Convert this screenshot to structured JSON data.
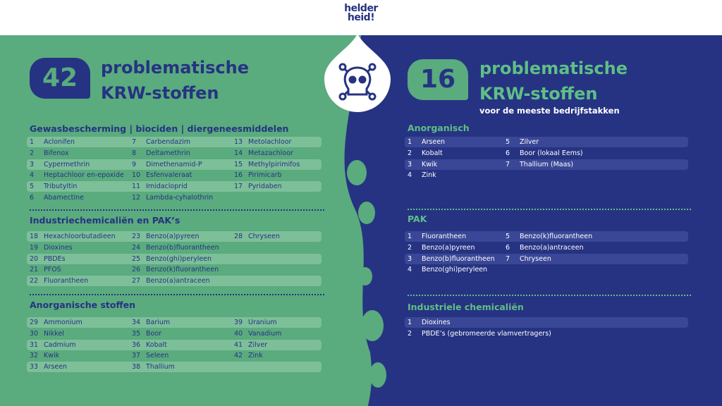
{
  "header": {
    "logo_lines": [
      "helder",
      "heid!"
    ]
  },
  "left": {
    "count": 42,
    "title_lines": [
      "problematische",
      "KRW-stoffen"
    ],
    "sections": [
      {
        "heading": "Gewasbescherming | biociden | diergeneesmiddelen",
        "columns": [
          [
            {
              "num": 1,
              "name": "Aclonifen"
            },
            {
              "num": 2,
              "name": "Bifenox"
            },
            {
              "num": 3,
              "name": "Cypermethrin"
            },
            {
              "num": 4,
              "name": "Heptachloor en-epoxide"
            },
            {
              "num": 5,
              "name": "Tributyltin"
            },
            {
              "num": 6,
              "name": "Abamectine"
            }
          ],
          [
            {
              "num": 7,
              "name": "Carbendazim"
            },
            {
              "num": 8,
              "name": "Deltamethrin"
            },
            {
              "num": 9,
              "name": "Dimethenamid-P"
            },
            {
              "num": 10,
              "name": "Esfenvaleraat"
            },
            {
              "num": 11,
              "name": "Imidacloprid"
            },
            {
              "num": 12,
              "name": "Lambda-cyhalothrin"
            }
          ],
          [
            {
              "num": 13,
              "name": "Metolachloor"
            },
            {
              "num": 14,
              "name": "Metazachloor"
            },
            {
              "num": 15,
              "name": "Methylpirimifos"
            },
            {
              "num": 16,
              "name": "Pirimicarb"
            },
            {
              "num": 17,
              "name": "Pyridaben"
            }
          ]
        ]
      },
      {
        "heading": "Industriechemicaliën en PAK’s",
        "columns": [
          [
            {
              "num": 18,
              "name": "Hexachloorbutadieen"
            },
            {
              "num": 19,
              "name": "Dioxines"
            },
            {
              "num": 20,
              "name": "PBDEs"
            },
            {
              "num": 21,
              "name": "PFOS"
            },
            {
              "num": 22,
              "name": "Fluorantheen"
            }
          ],
          [
            {
              "num": 23,
              "name": "Benzo(a)pyreen"
            },
            {
              "num": 24,
              "name": "Benzo(b)fluorantheen"
            },
            {
              "num": 25,
              "name": "Benzo(ghi)peryleen"
            },
            {
              "num": 26,
              "name": "Benzo(k)fluorantheen"
            },
            {
              "num": 27,
              "name": "Benzo(a)antraceen"
            }
          ],
          [
            {
              "num": 28,
              "name": "Chryseen"
            }
          ]
        ]
      },
      {
        "heading": "Anorganische stoffen",
        "columns": [
          [
            {
              "num": 29,
              "name": "Ammonium"
            },
            {
              "num": 30,
              "name": "Nikkel"
            },
            {
              "num": 31,
              "name": "Cadmium"
            },
            {
              "num": 32,
              "name": "Kwik"
            },
            {
              "num": 33,
              "name": "Arseen"
            }
          ],
          [
            {
              "num": 34,
              "name": "Barium"
            },
            {
              "num": 35,
              "name": "Boor"
            },
            {
              "num": 36,
              "name": "Kobalt"
            },
            {
              "num": 37,
              "name": "Seleen"
            },
            {
              "num": 38,
              "name": "Thallium"
            }
          ],
          [
            {
              "num": 39,
              "name": "Uranium"
            },
            {
              "num": 40,
              "name": "Vanadium"
            },
            {
              "num": 41,
              "name": "Zilver"
            },
            {
              "num": 42,
              "name": "Zink"
            }
          ]
        ]
      }
    ]
  },
  "right": {
    "count": 16,
    "title_lines": [
      "problematische",
      "KRW-stoffen"
    ],
    "subtitle": "voor de meeste bedrijfstakken",
    "sections": [
      {
        "heading": "Anorganisch",
        "columns": [
          [
            {
              "num": 1,
              "name": "Arseen"
            },
            {
              "num": 2,
              "name": "Kobalt"
            },
            {
              "num": 3,
              "name": "Kwik"
            },
            {
              "num": 4,
              "name": "Zink"
            }
          ],
          [
            {
              "num": 5,
              "name": "Zilver"
            },
            {
              "num": 6,
              "name": "Boor (lokaal Eems)"
            },
            {
              "num": 7,
              "name": "Thallium (Maas)"
            }
          ]
        ]
      },
      {
        "heading": "PAK",
        "columns": [
          [
            {
              "num": 1,
              "name": "Fluorantheen"
            },
            {
              "num": 2,
              "name": "Benzo(a)pyreen"
            },
            {
              "num": 3,
              "name": "Benzo(b)fluorantheen"
            },
            {
              "num": 4,
              "name": "Benzo(ghi)peryleen"
            }
          ],
          [
            {
              "num": 5,
              "name": "Benzo(k)fluorantheen"
            },
            {
              "num": 6,
              "name": "Benzo(a)antraceen"
            },
            {
              "num": 7,
              "name": "Chryseen"
            }
          ]
        ]
      },
      {
        "heading": "Industriele chemicaliën",
        "columns": [
          [
            {
              "num": 1,
              "name": "Dioxines"
            },
            {
              "num": 2,
              "name": "PBDE’s (gebromeerde vlamvertragers)"
            }
          ]
        ]
      }
    ]
  }
}
